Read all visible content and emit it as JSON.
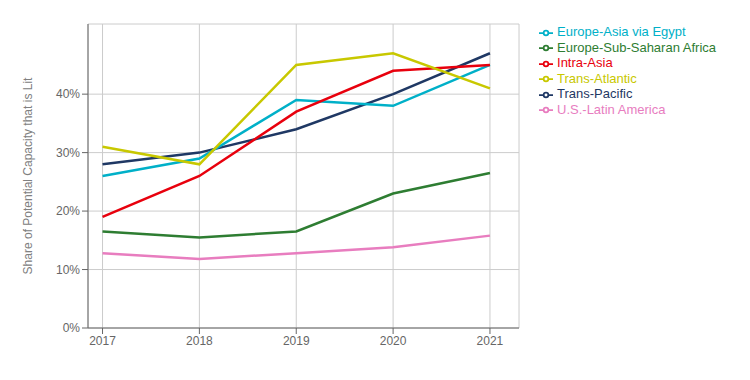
{
  "chart_data": {
    "type": "line",
    "x": [
      2017,
      2018,
      2019,
      2020,
      2021
    ],
    "xlim": [
      2016.85,
      2021.3
    ],
    "xticks": [
      2017,
      2018,
      2019,
      2020,
      2021
    ],
    "ylim": [
      0.0,
      0.52
    ],
    "yticks": [
      {
        "value": 0.0,
        "label": "0%"
      },
      {
        "value": 0.1,
        "label": "10%"
      },
      {
        "value": 0.2,
        "label": "20%"
      },
      {
        "value": 0.3,
        "label": "30%"
      },
      {
        "value": 0.4,
        "label": "40%"
      }
    ],
    "ylabel": "Share of Potential Capacity that is Lit",
    "grid": true,
    "legend": "right",
    "series": [
      {
        "name": "Trans-Pacific",
        "color": "#1f3864",
        "values": [
          0.28,
          0.3,
          0.34,
          0.4,
          0.47
        ]
      },
      {
        "name": "Europe-Asia via Egypt",
        "color": "#00b0c8",
        "values": [
          0.26,
          0.29,
          0.39,
          0.38,
          0.45
        ]
      },
      {
        "name": "Intra-Asia",
        "color": "#e8000d",
        "values": [
          0.19,
          0.26,
          0.37,
          0.44,
          0.45
        ]
      },
      {
        "name": "Trans-Atlantic",
        "color": "#c8c800",
        "values": [
          0.31,
          0.28,
          0.45,
          0.47,
          0.41
        ]
      },
      {
        "name": "Europe-Sub-Saharan Africa",
        "color": "#2e7d32",
        "values": [
          0.165,
          0.155,
          0.165,
          0.23,
          0.265
        ]
      },
      {
        "name": "U.S.-Latin America",
        "color": "#e87dbf",
        "values": [
          0.128,
          0.118,
          0.128,
          0.138,
          0.158
        ]
      }
    ]
  }
}
